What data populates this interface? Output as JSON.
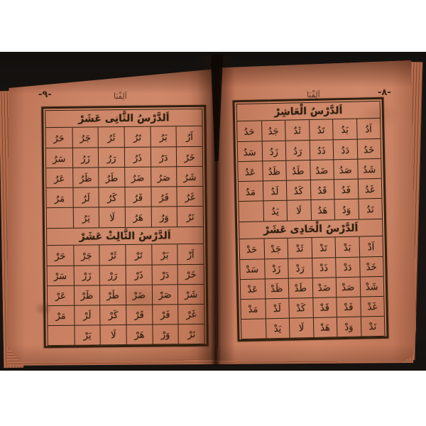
{
  "photo": {
    "background_color": "#1a1512",
    "paper_color": "#c67c5e",
    "ink_color": "#30200f"
  },
  "book": {
    "left_page": {
      "page_number": "-٩-",
      "running_title": "اَلِفْبَا",
      "lessons": [
        {
          "title": "اَلدَّرْسُ الثَّانِى عَشَرْ",
          "rows": [
            [
              "اَرُ",
              "بَرُ",
              "تَرُ",
              "ثَرُ",
              "جَرُ",
              "حَرُ"
            ],
            [
              "خَرُ",
              "دَرُ",
              "ذَرُ",
              "رَرُ",
              "زَرُ",
              "سَرُ"
            ],
            [
              "شَرُ",
              "صَرُ",
              "ضَرُ",
              "طَرُ",
              "ظَرُ",
              "عَرُ"
            ],
            [
              "غَرُ",
              "فَرُ",
              "قَرُ",
              "كَرُ",
              "لَرُ",
              "مَرُ"
            ],
            [
              "نَرُ",
              "وَرُ",
              "هَرُ",
              "لَا",
              "يَرُ",
              ""
            ]
          ]
        },
        {
          "title": "اَلدَّرْسُ الثَّالِثْ عَشَرْ",
          "rows": [
            [
              "اَرْ",
              "بَرْ",
              "تَرْ",
              "ثَرْ",
              "جَرْ",
              "حَرْ"
            ],
            [
              "خَرْ",
              "دَرْ",
              "ذَرْ",
              "رَرْ",
              "زَرْ",
              "سَرْ"
            ],
            [
              "شَرْ",
              "صَرْ",
              "ضَرْ",
              "طَرْ",
              "ظَرْ",
              "عَرْ"
            ],
            [
              "غَرْ",
              "فَرْ",
              "قَرْ",
              "كَرْ",
              "لَرْ",
              "مَرْ"
            ],
            [
              "نَرْ",
              "وَرْ",
              "هَرْ",
              "لَا",
              "يَرْ",
              ""
            ]
          ]
        }
      ]
    },
    "right_page": {
      "page_number": "-٨-",
      "running_title": "اَلِفْبَا",
      "lessons": [
        {
          "title": "اَلدَّرْسُ الْعَاشِرْ",
          "rows": [
            [
              "اَدُ",
              "بَدُ",
              "تَدُ",
              "ثَدُ",
              "جَدُ",
              "حَدُ"
            ],
            [
              "خَدُ",
              "دَدُ",
              "ذَدُ",
              "رَدُ",
              "زَدُ",
              "سَدُ"
            ],
            [
              "شَدُ",
              "صَدُ",
              "ضَدُ",
              "طَدُ",
              "ظَدُ",
              "عَدُ"
            ],
            [
              "غَدُ",
              "فَدُ",
              "قَدُ",
              "كَدُ",
              "لَدُ",
              "مَدُ"
            ],
            [
              "نَدُ",
              "وَدُ",
              "هَدُ",
              "لَا",
              "يَدُ",
              ""
            ]
          ]
        },
        {
          "title": "اَلدَّرْسُ الْحَادِى عَشَرْ",
          "rows": [
            [
              "اَدْ",
              "بَدْ",
              "تَدْ",
              "ثَدْ",
              "جَدْ",
              "حَدْ"
            ],
            [
              "خَدْ",
              "دَدْ",
              "ذَدْ",
              "رَدْ",
              "زَدْ",
              "سَدْ"
            ],
            [
              "شَدْ",
              "صَدْ",
              "ضَدْ",
              "طَدْ",
              "ظَدْ",
              "عَدْ"
            ],
            [
              "غَدْ",
              "فَدْ",
              "قَدْ",
              "كَدْ",
              "لَدْ",
              "مَدْ"
            ],
            [
              "نَدْ",
              "وَدْ",
              "هَدْ",
              "لَا",
              "يَدْ",
              ""
            ]
          ]
        }
      ]
    }
  }
}
